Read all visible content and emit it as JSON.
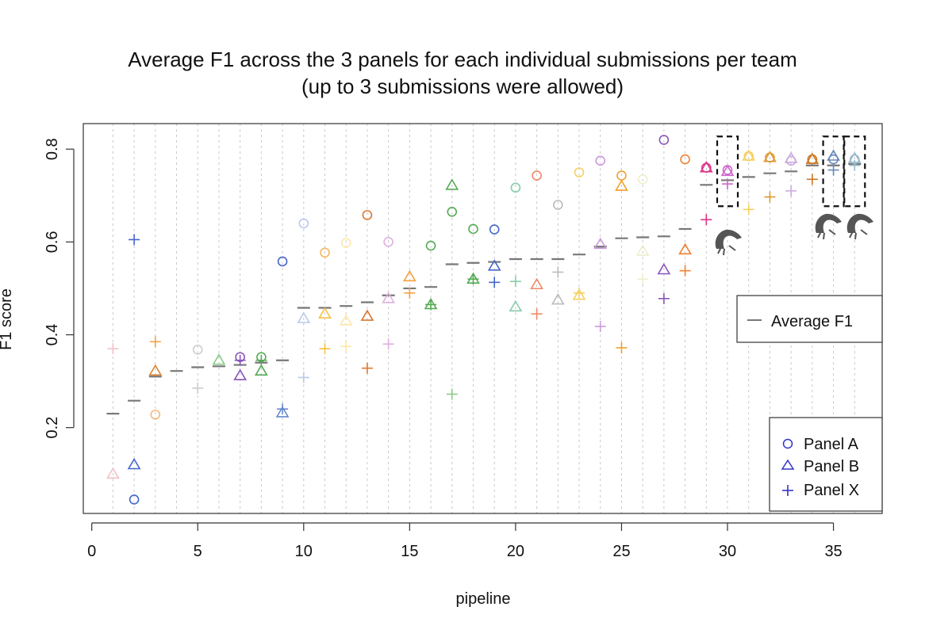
{
  "chart_data": {
    "type": "scatter",
    "title": "Average F1 across the 3 panels for each individual submissions per team",
    "subtitle": "(up to 3 submissions were allowed)",
    "xlabel": "pipeline",
    "ylabel": "F1 score",
    "xlim": [
      -0.4,
      37.3
    ],
    "ylim": [
      0.015,
      0.855
    ],
    "xticks": [
      0,
      5,
      10,
      15,
      20,
      25,
      30,
      35
    ],
    "yticks": [
      0.2,
      0.4,
      0.6,
      0.8
    ],
    "grid": "vertical dotted lines at each pipeline",
    "legend_average": {
      "position": "right-middle",
      "label": "Average F1",
      "color": "#777777"
    },
    "legend_panels": {
      "position": "bottom-right",
      "entries": [
        {
          "label": "Panel A",
          "marker": "circle",
          "color": "#3333cc"
        },
        {
          "label": "Panel B",
          "marker": "triangle",
          "color": "#3333cc"
        },
        {
          "label": "Panel X",
          "marker": "plus",
          "color": "#3333cc"
        }
      ]
    },
    "series": [
      {
        "marker": "dash",
        "points": [
          [
            1,
            0.23,
            "#777777"
          ],
          [
            2,
            0.258,
            "#777777"
          ],
          [
            3,
            0.31,
            "#777777"
          ],
          [
            4,
            0.322,
            "#777777"
          ],
          [
            5,
            0.33,
            "#777777"
          ],
          [
            6,
            0.332,
            "#777777"
          ],
          [
            7,
            0.335,
            "#777777"
          ],
          [
            8,
            0.34,
            "#777777"
          ],
          [
            9,
            0.345,
            "#777777"
          ],
          [
            10,
            0.458,
            "#777777"
          ],
          [
            11,
            0.458,
            "#777777"
          ],
          [
            12,
            0.462,
            "#777777"
          ],
          [
            13,
            0.47,
            "#777777"
          ],
          [
            14,
            0.485,
            "#777777"
          ],
          [
            15,
            0.5,
            "#777777"
          ],
          [
            16,
            0.503,
            "#777777"
          ],
          [
            17,
            0.552,
            "#777777"
          ],
          [
            18,
            0.555,
            "#777777"
          ],
          [
            19,
            0.557,
            "#777777"
          ],
          [
            20,
            0.563,
            "#777777"
          ],
          [
            21,
            0.563,
            "#777777"
          ],
          [
            22,
            0.563,
            "#777777"
          ],
          [
            23,
            0.573,
            "#777777"
          ],
          [
            24,
            0.59,
            "#777777"
          ],
          [
            25,
            0.608,
            "#777777"
          ],
          [
            26,
            0.61,
            "#777777"
          ],
          [
            27,
            0.612,
            "#777777"
          ],
          [
            28,
            0.628,
            "#777777"
          ],
          [
            29,
            0.723,
            "#777777"
          ],
          [
            30,
            0.733,
            "#777777"
          ],
          [
            31,
            0.74,
            "#777777"
          ],
          [
            32,
            0.748,
            "#777777"
          ],
          [
            33,
            0.752,
            "#777777"
          ],
          [
            34,
            0.765,
            "#777777"
          ],
          [
            35,
            0.765,
            "#777777"
          ],
          [
            36,
            0.768,
            "#777777"
          ]
        ]
      },
      {
        "marker": "circle",
        "points": [
          [
            2,
            0.045,
            "#4466cc"
          ],
          [
            3,
            0.228,
            "#f5b880"
          ],
          [
            5,
            0.368,
            "#cccccc"
          ],
          [
            7,
            0.352,
            "#8855bb"
          ],
          [
            8,
            0.352,
            "#55aa55"
          ],
          [
            9,
            0.558,
            "#4466cc"
          ],
          [
            10,
            0.64,
            "#bbc8ee"
          ],
          [
            11,
            0.577,
            "#f5b860"
          ],
          [
            12,
            0.598,
            "#fde8a8"
          ],
          [
            13,
            0.658,
            "#dd7733"
          ],
          [
            14,
            0.6,
            "#e0b0e0"
          ],
          [
            16,
            0.592,
            "#55aa55"
          ],
          [
            17,
            0.665,
            "#55aa55"
          ],
          [
            18,
            0.628,
            "#55aa55"
          ],
          [
            19,
            0.627,
            "#4466cc"
          ],
          [
            20,
            0.717,
            "#88ccaa"
          ],
          [
            21,
            0.743,
            "#f08866"
          ],
          [
            22,
            0.68,
            "#bbbbbb"
          ],
          [
            23,
            0.75,
            "#f5d060"
          ],
          [
            24,
            0.775,
            "#cc99dd"
          ],
          [
            25,
            0.743,
            "#f0a030"
          ],
          [
            26,
            0.735,
            "#eeeecc"
          ],
          [
            27,
            0.82,
            "#8855bb"
          ],
          [
            28,
            0.778,
            "#f08030"
          ],
          [
            29,
            0.76,
            "#dd3388"
          ],
          [
            30,
            0.755,
            "#cc66cc"
          ],
          [
            31,
            0.785,
            "#f5d060"
          ],
          [
            32,
            0.782,
            "#dd9933"
          ],
          [
            33,
            0.775,
            "#ccaadd"
          ],
          [
            34,
            0.778,
            "#cc7722"
          ],
          [
            35,
            0.778,
            "#6688bb"
          ],
          [
            36,
            0.778,
            "#99bbcc"
          ]
        ]
      },
      {
        "marker": "triangle",
        "points": [
          [
            1,
            0.1,
            "#f5c0c8"
          ],
          [
            2,
            0.12,
            "#4466cc"
          ],
          [
            3,
            0.322,
            "#dd8833"
          ],
          [
            6,
            0.345,
            "#88cc88"
          ],
          [
            7,
            0.312,
            "#8855bb"
          ],
          [
            8,
            0.322,
            "#55aa55"
          ],
          [
            9,
            0.232,
            "#6688cc"
          ],
          [
            10,
            0.435,
            "#bbc8ee"
          ],
          [
            11,
            0.445,
            "#f5c040"
          ],
          [
            12,
            0.43,
            "#fde8a8"
          ],
          [
            13,
            0.44,
            "#dd7733"
          ],
          [
            14,
            0.478,
            "#e0b0e0"
          ],
          [
            15,
            0.525,
            "#f5a040"
          ],
          [
            16,
            0.465,
            "#55aa55"
          ],
          [
            17,
            0.722,
            "#55aa55"
          ],
          [
            18,
            0.52,
            "#55aa55"
          ],
          [
            19,
            0.548,
            "#4466cc"
          ],
          [
            20,
            0.46,
            "#88ccaa"
          ],
          [
            21,
            0.508,
            "#f08866"
          ],
          [
            22,
            0.475,
            "#bbbbbb"
          ],
          [
            23,
            0.485,
            "#f5d060"
          ],
          [
            24,
            0.595,
            "#cc99dd"
          ],
          [
            25,
            0.72,
            "#f0a030"
          ],
          [
            26,
            0.58,
            "#eeeecc"
          ],
          [
            27,
            0.54,
            "#8855bb"
          ],
          [
            28,
            0.583,
            "#f08030"
          ],
          [
            29,
            0.76,
            "#dd3388"
          ],
          [
            30,
            0.752,
            "#cc66cc"
          ],
          [
            31,
            0.785,
            "#f5d060"
          ],
          [
            32,
            0.782,
            "#dd9933"
          ],
          [
            33,
            0.78,
            "#ccaadd"
          ],
          [
            34,
            0.778,
            "#cc7722"
          ],
          [
            35,
            0.785,
            "#6688bb"
          ],
          [
            36,
            0.78,
            "#99bbcc"
          ]
        ]
      },
      {
        "marker": "plus",
        "points": [
          [
            1,
            0.37,
            "#f5c0c8"
          ],
          [
            2,
            0.605,
            "#4466cc"
          ],
          [
            3,
            0.385,
            "#f5a040"
          ],
          [
            5,
            0.285,
            "#cccccc"
          ],
          [
            7,
            0.345,
            "#8855bb"
          ],
          [
            8,
            0.345,
            "#55aa55"
          ],
          [
            9,
            0.24,
            "#6688cc"
          ],
          [
            10,
            0.308,
            "#bbc8ee"
          ],
          [
            11,
            0.37,
            "#f5c040"
          ],
          [
            12,
            0.375,
            "#fde8a8"
          ],
          [
            13,
            0.328,
            "#dd7733"
          ],
          [
            14,
            0.38,
            "#e0b0e0"
          ],
          [
            15,
            0.49,
            "#f5a040"
          ],
          [
            16,
            0.465,
            "#55aa55"
          ],
          [
            17,
            0.272,
            "#88cc88"
          ],
          [
            18,
            0.52,
            "#55aa55"
          ],
          [
            19,
            0.513,
            "#4466cc"
          ],
          [
            20,
            0.515,
            "#88ccaa"
          ],
          [
            21,
            0.445,
            "#f08866"
          ],
          [
            22,
            0.535,
            "#bbbbbb"
          ],
          [
            23,
            0.49,
            "#f5d060"
          ],
          [
            24,
            0.418,
            "#cc99dd"
          ],
          [
            25,
            0.372,
            "#f0a030"
          ],
          [
            26,
            0.52,
            "#eeeecc"
          ],
          [
            27,
            0.478,
            "#8855bb"
          ],
          [
            28,
            0.538,
            "#f08030"
          ],
          [
            29,
            0.648,
            "#dd3388"
          ],
          [
            30,
            0.725,
            "#cc66cc"
          ],
          [
            31,
            0.67,
            "#f5d060"
          ],
          [
            32,
            0.697,
            "#dd9933"
          ],
          [
            33,
            0.71,
            "#ccaadd"
          ],
          [
            34,
            0.735,
            "#cc7722"
          ],
          [
            35,
            0.755,
            "#6688bb"
          ],
          [
            36,
            0.765,
            "#99bbcc"
          ]
        ]
      }
    ],
    "highlight_boxes": [
      30,
      35,
      36
    ]
  }
}
